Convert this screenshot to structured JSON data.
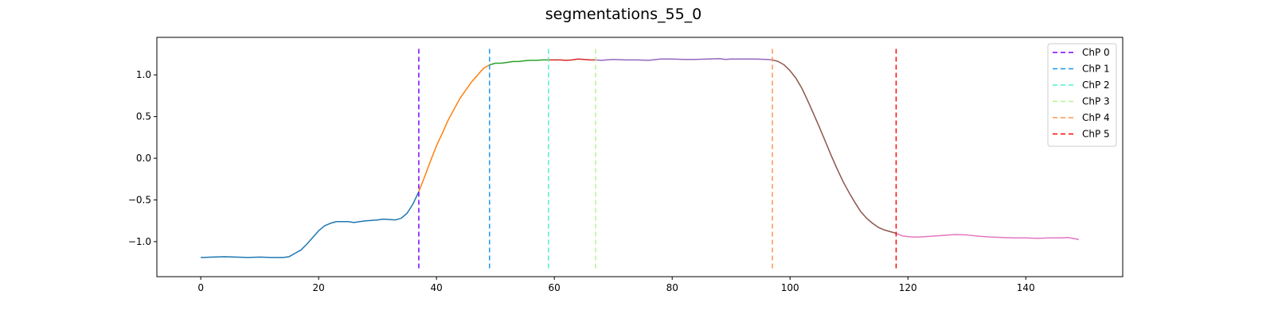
{
  "chart_data": {
    "type": "line",
    "title": "segmentations_55_0",
    "xlabel": "",
    "ylabel": "",
    "xlim": [
      -7.45,
      156.45
    ],
    "ylim": [
      -1.42,
      1.45
    ],
    "xticks": [
      0,
      20,
      40,
      60,
      80,
      100,
      120,
      140
    ],
    "yticks": [
      -1.0,
      -0.5,
      0.0,
      0.5,
      1.0
    ],
    "xtick_labels": [
      "0",
      "20",
      "40",
      "60",
      "80",
      "100",
      "120",
      "140"
    ],
    "ytick_labels": [
      "−1.0",
      "−0.5",
      "0.0",
      "0.5",
      "1.0"
    ],
    "grid": false,
    "legend_position": "top-right",
    "segments": [
      {
        "color": "#1f77b4",
        "x": [
          0,
          2,
          4,
          6,
          8,
          10,
          12,
          14,
          15,
          16,
          17,
          18,
          19,
          20,
          21,
          22,
          23,
          24,
          25,
          26,
          27,
          28,
          29,
          30,
          31,
          32,
          33,
          34,
          35,
          36,
          37
        ],
        "y": [
          -1.19,
          -1.185,
          -1.18,
          -1.185,
          -1.19,
          -1.185,
          -1.19,
          -1.19,
          -1.18,
          -1.14,
          -1.1,
          -1.03,
          -0.95,
          -0.87,
          -0.81,
          -0.78,
          -0.76,
          -0.76,
          -0.76,
          -0.77,
          -0.76,
          -0.75,
          -0.745,
          -0.74,
          -0.73,
          -0.735,
          -0.74,
          -0.72,
          -0.66,
          -0.55,
          -0.4
        ]
      },
      {
        "color": "#ff7f0e",
        "x": [
          37,
          38,
          39,
          40,
          41,
          42,
          43,
          44,
          45,
          46,
          47,
          48,
          49
        ],
        "y": [
          -0.4,
          -0.22,
          -0.03,
          0.15,
          0.3,
          0.46,
          0.59,
          0.72,
          0.82,
          0.92,
          1.0,
          1.08,
          1.12
        ]
      },
      {
        "color": "#2ca02c",
        "x": [
          49,
          50,
          51,
          52,
          53,
          54,
          55,
          56,
          57,
          58,
          59
        ],
        "y": [
          1.12,
          1.14,
          1.14,
          1.15,
          1.16,
          1.16,
          1.17,
          1.175,
          1.175,
          1.18,
          1.18
        ]
      },
      {
        "color": "#d62728",
        "x": [
          59,
          60,
          61,
          62,
          63,
          64,
          65,
          66,
          67
        ],
        "y": [
          1.18,
          1.18,
          1.18,
          1.175,
          1.18,
          1.19,
          1.185,
          1.18,
          1.18
        ]
      },
      {
        "color": "#9467bd",
        "x": [
          67,
          68,
          70,
          72,
          74,
          76,
          78,
          80,
          82,
          84,
          86,
          88,
          89,
          90,
          92,
          94,
          96,
          97
        ],
        "y": [
          1.18,
          1.175,
          1.185,
          1.18,
          1.18,
          1.175,
          1.19,
          1.19,
          1.185,
          1.185,
          1.19,
          1.195,
          1.185,
          1.19,
          1.19,
          1.19,
          1.185,
          1.18
        ]
      },
      {
        "color": "#8c564b",
        "x": [
          97,
          98,
          99,
          100,
          101,
          102,
          103,
          104,
          105,
          106,
          107,
          108,
          109,
          110,
          111,
          112,
          113,
          114,
          115,
          116,
          117,
          118
        ],
        "y": [
          1.18,
          1.16,
          1.12,
          1.05,
          0.96,
          0.84,
          0.69,
          0.53,
          0.37,
          0.2,
          0.03,
          -0.13,
          -0.28,
          -0.41,
          -0.53,
          -0.64,
          -0.72,
          -0.78,
          -0.83,
          -0.86,
          -0.88,
          -0.9
        ]
      },
      {
        "color": "#e377c2",
        "x": [
          118,
          119,
          120,
          121,
          122,
          124,
          126,
          128,
          130,
          132,
          134,
          136,
          138,
          140,
          142,
          144,
          146,
          147,
          148,
          149
        ],
        "y": [
          -0.9,
          -0.93,
          -0.94,
          -0.945,
          -0.945,
          -0.935,
          -0.925,
          -0.915,
          -0.92,
          -0.935,
          -0.945,
          -0.95,
          -0.955,
          -0.955,
          -0.96,
          -0.955,
          -0.955,
          -0.95,
          -0.96,
          -0.975
        ]
      }
    ],
    "changepoints": [
      {
        "name": "ChP 0",
        "x": 37,
        "color": "#7f00ff",
        "dash": "6,4"
      },
      {
        "name": "ChP 1",
        "x": 49,
        "color": "#1996f3",
        "dash": "6,4"
      },
      {
        "name": "ChP 2",
        "x": 59,
        "color": "#4df3ce",
        "dash": "6,4"
      },
      {
        "name": "ChP 3",
        "x": 67,
        "color": "#b2f396",
        "dash": "6,4"
      },
      {
        "name": "ChP 4",
        "x": 97,
        "color": "#ff964f",
        "dash": "6,4"
      },
      {
        "name": "ChP 5",
        "x": 118,
        "color": "#ff0000",
        "dash": "6,4"
      }
    ],
    "changepoint_ylim": [
      -1.32,
      1.32
    ]
  }
}
